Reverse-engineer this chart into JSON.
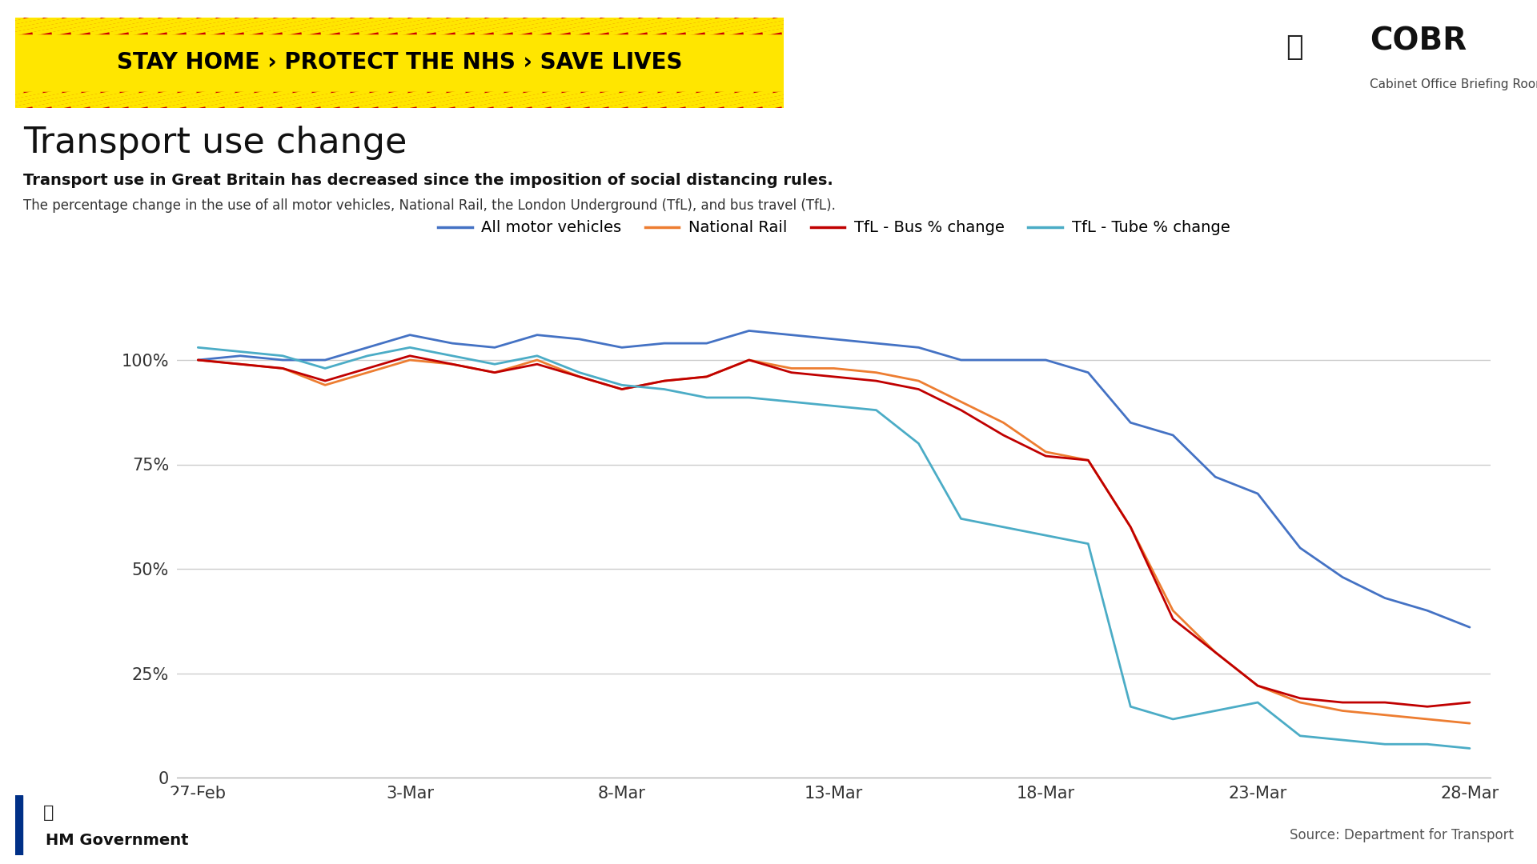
{
  "title": "Transport use change",
  "bold_subtitle": "Transport use in Great Britain has decreased since the imposition of social distancing rules.",
  "subtitle": "The percentage change in the use of all motor vehicles, National Rail, the London Underground (TfL), and bus travel (TfL).",
  "source": "Source: Department for Transport",
  "banner_text": "STAY HOME › PROTECT THE NHS › SAVE LIVES",
  "cobr_text": "COBR",
  "cobr_sub": "Cabinet Office Briefing Rooms",
  "hm_gov_text": "HM Government",
  "x_labels": [
    "27-Feb",
    "3-Mar",
    "8-Mar",
    "13-Mar",
    "18-Mar",
    "23-Mar",
    "28-Mar"
  ],
  "x_positions": [
    0,
    5,
    10,
    15,
    20,
    25,
    30
  ],
  "all_motor_vehicles": {
    "label": "All motor vehicles",
    "color": "#4472C4",
    "x": [
      0,
      1,
      2,
      3,
      4,
      5,
      6,
      7,
      8,
      9,
      10,
      11,
      12,
      13,
      14,
      15,
      16,
      17,
      18,
      19,
      20,
      21,
      22,
      23,
      24,
      25,
      26,
      27,
      28,
      29,
      30
    ],
    "y": [
      100,
      101,
      100,
      100,
      103,
      106,
      104,
      103,
      106,
      105,
      103,
      104,
      104,
      107,
      106,
      105,
      104,
      103,
      100,
      100,
      100,
      97,
      85,
      82,
      72,
      68,
      55,
      48,
      43,
      40,
      36
    ]
  },
  "national_rail": {
    "label": "National Rail",
    "color": "#ED7D31",
    "x": [
      0,
      1,
      2,
      3,
      4,
      5,
      6,
      7,
      8,
      9,
      10,
      11,
      12,
      13,
      14,
      15,
      16,
      17,
      18,
      19,
      20,
      21,
      22,
      23,
      24,
      25,
      26,
      27,
      28,
      29,
      30
    ],
    "y": [
      100,
      99,
      98,
      94,
      97,
      100,
      99,
      97,
      100,
      96,
      93,
      95,
      96,
      100,
      98,
      98,
      97,
      95,
      90,
      85,
      78,
      76,
      60,
      40,
      30,
      22,
      18,
      16,
      15,
      14,
      13
    ]
  },
  "tfl_bus": {
    "label": "TfL - Bus % change",
    "color": "#C00000",
    "x": [
      0,
      1,
      2,
      3,
      4,
      5,
      6,
      7,
      8,
      9,
      10,
      11,
      12,
      13,
      14,
      15,
      16,
      17,
      18,
      19,
      20,
      21,
      22,
      23,
      24,
      25,
      26,
      27,
      28,
      29,
      30
    ],
    "y": [
      100,
      99,
      98,
      95,
      98,
      101,
      99,
      97,
      99,
      96,
      93,
      95,
      96,
      100,
      97,
      96,
      95,
      93,
      88,
      82,
      77,
      76,
      60,
      38,
      30,
      22,
      19,
      18,
      18,
      17,
      18
    ]
  },
  "tfl_tube": {
    "label": "TfL - Tube % change",
    "color": "#4BACC6",
    "x": [
      0,
      1,
      2,
      3,
      4,
      5,
      6,
      7,
      8,
      9,
      10,
      11,
      12,
      13,
      14,
      15,
      16,
      17,
      18,
      19,
      20,
      21,
      22,
      23,
      24,
      25,
      26,
      27,
      28,
      29,
      30
    ],
    "y": [
      103,
      102,
      101,
      98,
      101,
      103,
      101,
      99,
      101,
      97,
      94,
      93,
      91,
      91,
      90,
      89,
      88,
      80,
      62,
      60,
      58,
      56,
      17,
      14,
      16,
      18,
      10,
      9,
      8,
      8,
      7
    ]
  },
  "ylim": [
    0,
    120
  ],
  "yticks": [
    0,
    25,
    50,
    75,
    100
  ],
  "ytick_labels": [
    "0",
    "25%",
    "50%",
    "75%",
    "100%"
  ],
  "bg_color": "#FFFFFF",
  "grid_color": "#CCCCCC",
  "banner_bg": "#FFE600",
  "banner_text_color": "#000000",
  "banner_stripe_color": "#CC0000"
}
